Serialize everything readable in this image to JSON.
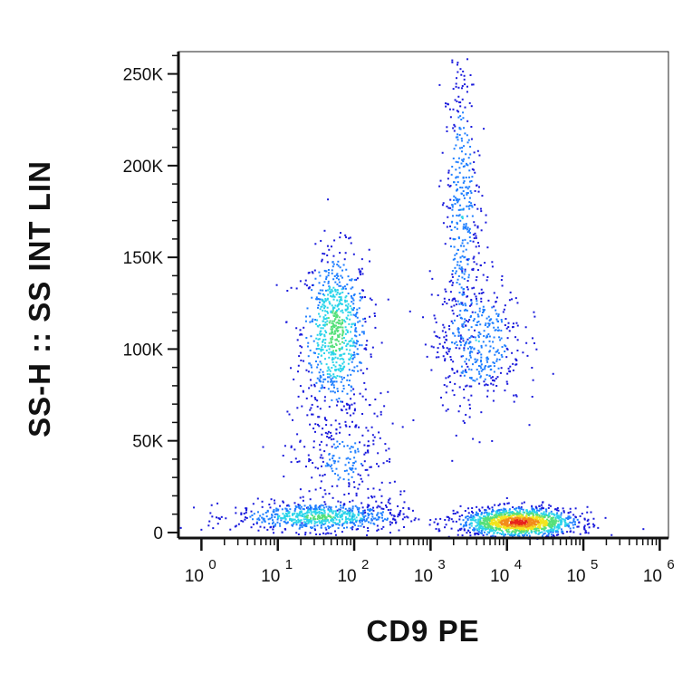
{
  "chart_data": {
    "type": "scatter",
    "title": "",
    "xlabel": "CD9 PE",
    "ylabel": "SS-H :: SS INT LIN",
    "x_scale": "log",
    "xlim": [
      0.5,
      1300000
    ],
    "ylim": [
      -3000,
      262144
    ],
    "grid": false,
    "legend": "none",
    "x_ticks": [
      {
        "value": 1,
        "base": "10",
        "exp": "0"
      },
      {
        "value": 10,
        "base": "10",
        "exp": "1"
      },
      {
        "value": 100,
        "base": "10",
        "exp": "2"
      },
      {
        "value": 1000,
        "base": "10",
        "exp": "3"
      },
      {
        "value": 10000,
        "base": "10",
        "exp": "4"
      },
      {
        "value": 100000,
        "base": "10",
        "exp": "5"
      },
      {
        "value": 1000000,
        "base": "10",
        "exp": "6"
      }
    ],
    "y_ticks": [
      {
        "value": 0,
        "label": "0"
      },
      {
        "value": 50000,
        "label": "50K"
      },
      {
        "value": 100000,
        "label": "100K"
      },
      {
        "value": 150000,
        "label": "150K"
      },
      {
        "value": 200000,
        "label": "200K"
      },
      {
        "value": 250000,
        "label": "250K"
      }
    ],
    "colormap": [
      "#1a1adc",
      "#1f7fff",
      "#2ad4ea",
      "#56e07a",
      "#f2e51e",
      "#f28c1a",
      "#e8231c"
    ],
    "populations": [
      {
        "x_center": 55,
        "x_spread_decades": 0.22,
        "y_center": 110000,
        "y_spread": 22000,
        "density": 0.55
      },
      {
        "x_center": 70,
        "x_spread_decades": 0.35,
        "y_center": 40000,
        "y_spread": 18000,
        "density": 0.2
      },
      {
        "x_center": 35,
        "x_spread_decades": 0.55,
        "y_center": 9000,
        "y_spread": 4000,
        "density": 0.5
      },
      {
        "x_center": 2500,
        "x_spread_decades": 0.12,
        "y_center": 175000,
        "y_spread": 45000,
        "density": 0.3
      },
      {
        "x_center": 4000,
        "x_spread_decades": 0.3,
        "y_center": 105000,
        "y_spread": 18000,
        "density": 0.3
      },
      {
        "x_center": 14000,
        "x_spread_decades": 0.38,
        "y_center": 6000,
        "y_spread": 4000,
        "density": 1.0
      }
    ]
  }
}
